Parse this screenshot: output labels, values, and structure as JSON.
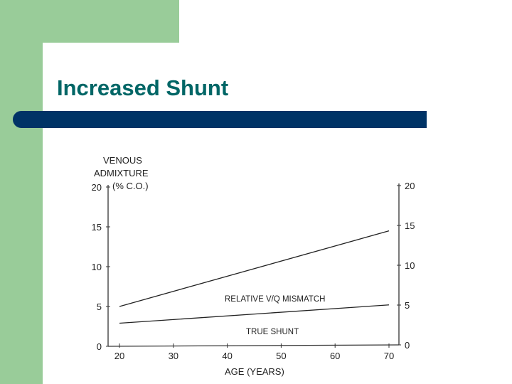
{
  "slide": {
    "title": "Increased Shunt",
    "colors": {
      "title": "#006666",
      "bar": "#003366",
      "green": "#99cc99"
    }
  },
  "chart_data": {
    "type": "line",
    "xlabel": "AGE (YEARS)",
    "ylabel_lines": [
      "VENOUS",
      "ADMIXTURE",
      "(% C.O.)"
    ],
    "x": [
      20,
      70
    ],
    "xticks": [
      20,
      30,
      40,
      50,
      60,
      70
    ],
    "yticks": [
      0,
      5,
      10,
      15,
      20
    ],
    "xlim": [
      20,
      70
    ],
    "ylim": [
      0,
      20
    ],
    "series": [
      {
        "values": [
          5.0,
          14.5
        ]
      },
      {
        "values": [
          2.9,
          5.2
        ]
      }
    ],
    "annotations": [
      "RELATIVE V/Q MISMATCH",
      "TRUE SHUNT"
    ],
    "legend": "none",
    "grid": false
  }
}
